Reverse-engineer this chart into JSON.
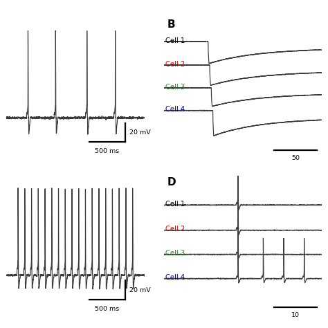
{
  "bg_color": "#ffffff",
  "trace_color": "#3a3a3a",
  "cell_labels": [
    "Cell 1",
    "Cell 2",
    "Cell 3",
    "Cell 4"
  ],
  "cell_colors": [
    "#000000",
    "#cc0000",
    "#228B22",
    "#00008B"
  ],
  "panel_B_label": "B",
  "panel_D_label": "D",
  "scale_A_y": "20 mV",
  "scale_A_x": "500 ms",
  "scale_C_y": "20 mV",
  "scale_C_x": "500 ms",
  "scale_B": "50",
  "scale_D": "10"
}
